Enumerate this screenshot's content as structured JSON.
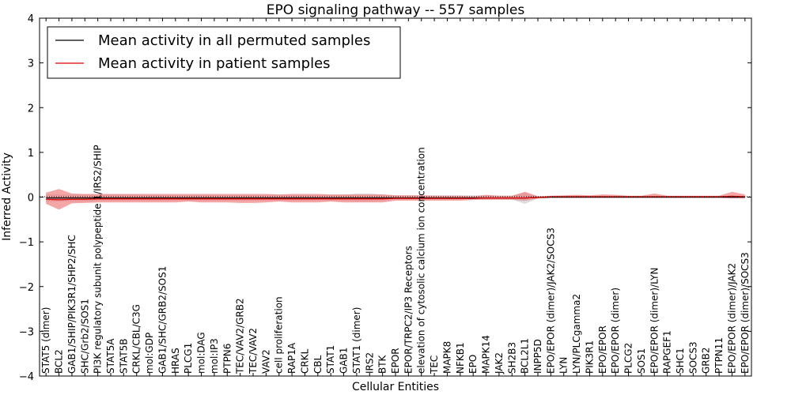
{
  "chart_data": {
    "type": "line",
    "title": "EPO signaling pathway -- 557 samples",
    "xlabel": "Cellular Entities",
    "ylabel": "Inferred Activity",
    "ylim": [
      -4,
      4
    ],
    "yticks": [
      "−4",
      "−3",
      "−2",
      "−1",
      "0",
      "1",
      "2",
      "3",
      "4"
    ],
    "grid": false,
    "legend_position": "top-left",
    "colors": {
      "permuted": "#000000",
      "patient": "#e00000",
      "patient_band": "#f08080",
      "permuted_band": "#b0b0b0"
    },
    "categories": [
      "STAT5 (dimer)",
      "BCL2",
      "GAB1/SHIP/PIK3R1/SHP2/SHC",
      "SHC/Grb2/SOS1",
      "PI3K regulatory subunit polypeptide 1/IRS2/SHIP",
      "STAT5A",
      "STAT5B",
      "CRKL/CBL/C3G",
      "mol:GDP",
      "GAB1/SHC/GRB2/SOS1",
      "HRAS",
      "PLCG1",
      "mol:DAG",
      "mol:IP3",
      "PTPN6",
      "TEC/VAV2/GRB2",
      "TEC/VAV2",
      "VAV2",
      "cell proliferation",
      "RAP1A",
      "CRKL",
      "CBL",
      "STAT1",
      "GAB1",
      "STAT1 (dimer)",
      "IRS2",
      "BTK",
      "EPOR",
      "EPOR/TRPC2/IP3 Receptors",
      "elevation of cytosolic calcium ion concentration",
      "TEC",
      "MAPK8",
      "NFKB1",
      "EPO",
      "MAPK14",
      "JAK2",
      "SH2B3",
      "BCL2L1",
      "INPP5D",
      "EPO/EPOR (dimer)/JAK2/SOCS3",
      "LYN",
      "LYN/PLCgamma2",
      "PIK3R1",
      "EPO/EPOR",
      "EPO/EPOR (dimer)",
      "PLCG2",
      "SOS1",
      "EPO/EPOR (dimer)/LYN",
      "RAPGEF1",
      "SHC1",
      "SOCS3",
      "GRB2",
      "PTPN11",
      "EPO/EPOR (dimer)/JAK2",
      "EPO/EPOR (dimer)/SOCS3"
    ],
    "series": [
      {
        "name": "Mean activity in all permuted samples",
        "values": [
          -0.02,
          -0.02,
          -0.02,
          -0.02,
          -0.02,
          -0.02,
          -0.02,
          -0.02,
          -0.02,
          -0.02,
          -0.02,
          -0.02,
          -0.02,
          -0.02,
          -0.02,
          -0.02,
          -0.02,
          -0.02,
          -0.02,
          -0.02,
          -0.02,
          -0.02,
          -0.02,
          -0.02,
          -0.02,
          -0.02,
          -0.02,
          -0.02,
          -0.02,
          -0.02,
          -0.02,
          -0.02,
          -0.02,
          -0.02,
          -0.02,
          -0.02,
          -0.02,
          -0.02,
          -0.01,
          0.0,
          0.0,
          0.0,
          0.0,
          0.0,
          0.0,
          0.0,
          0.0,
          0.0,
          0.0,
          0.0,
          0.0,
          0.0,
          0.0,
          0.0,
          0.0
        ],
        "lower": [
          -0.1,
          -0.1,
          -0.1,
          -0.1,
          -0.08,
          -0.08,
          -0.08,
          -0.08,
          -0.08,
          -0.08,
          -0.08,
          -0.08,
          -0.08,
          -0.08,
          -0.08,
          -0.08,
          -0.08,
          -0.08,
          -0.08,
          -0.08,
          -0.08,
          -0.08,
          -0.08,
          -0.08,
          -0.1,
          -0.1,
          -0.08,
          -0.06,
          -0.06,
          -0.06,
          -0.06,
          -0.06,
          -0.06,
          -0.06,
          -0.05,
          -0.05,
          -0.05,
          -0.15,
          -0.03,
          -0.02,
          -0.02,
          -0.02,
          -0.02,
          -0.02,
          -0.02,
          -0.02,
          -0.02,
          -0.02,
          -0.02,
          -0.02,
          -0.02,
          -0.02,
          -0.02,
          -0.02,
          -0.02
        ],
        "upper": [
          0.06,
          0.06,
          0.06,
          0.06,
          0.06,
          0.06,
          0.06,
          0.06,
          0.05,
          0.05,
          0.05,
          0.05,
          0.05,
          0.05,
          0.05,
          0.05,
          0.05,
          0.05,
          0.05,
          0.05,
          0.05,
          0.05,
          0.05,
          0.05,
          0.08,
          0.08,
          0.06,
          0.04,
          0.04,
          0.04,
          0.04,
          0.04,
          0.04,
          0.04,
          0.03,
          0.03,
          0.03,
          0.1,
          0.02,
          0.02,
          0.02,
          0.02,
          0.02,
          0.02,
          0.02,
          0.02,
          0.02,
          0.02,
          0.02,
          0.02,
          0.02,
          0.02,
          0.02,
          0.02,
          0.02
        ]
      },
      {
        "name": "Mean activity in patient samples",
        "values": [
          -0.05,
          -0.06,
          -0.05,
          -0.05,
          -0.04,
          -0.04,
          -0.04,
          -0.04,
          -0.04,
          -0.04,
          -0.04,
          -0.04,
          -0.04,
          -0.04,
          -0.04,
          -0.04,
          -0.04,
          -0.04,
          -0.04,
          -0.04,
          -0.04,
          -0.04,
          -0.04,
          -0.04,
          -0.04,
          -0.04,
          -0.04,
          -0.03,
          -0.03,
          -0.03,
          -0.03,
          -0.03,
          -0.03,
          -0.03,
          -0.02,
          -0.02,
          -0.02,
          -0.02,
          -0.01,
          0.01,
          0.01,
          0.01,
          0.01,
          0.01,
          0.01,
          0.01,
          0.01,
          0.01,
          0.01,
          0.01,
          0.01,
          0.01,
          0.01,
          0.02,
          0.01
        ],
        "lower": [
          -0.15,
          -0.28,
          -0.14,
          -0.13,
          -0.12,
          -0.12,
          -0.12,
          -0.12,
          -0.12,
          -0.12,
          -0.12,
          -0.1,
          -0.12,
          -0.12,
          -0.12,
          -0.13,
          -0.13,
          -0.12,
          -0.1,
          -0.12,
          -0.12,
          -0.12,
          -0.1,
          -0.12,
          -0.12,
          -0.12,
          -0.12,
          -0.08,
          -0.08,
          -0.08,
          -0.08,
          -0.08,
          -0.08,
          -0.06,
          -0.06,
          -0.06,
          -0.06,
          -0.08,
          -0.03,
          -0.02,
          -0.02,
          -0.02,
          -0.02,
          -0.02,
          -0.02,
          -0.02,
          -0.02,
          -0.02,
          -0.02,
          -0.02,
          -0.02,
          -0.02,
          -0.02,
          -0.03,
          -0.03
        ],
        "upper": [
          0.1,
          0.18,
          0.08,
          0.07,
          0.07,
          0.07,
          0.07,
          0.07,
          0.07,
          0.07,
          0.07,
          0.07,
          0.07,
          0.07,
          0.07,
          0.07,
          0.07,
          0.07,
          0.06,
          0.07,
          0.07,
          0.07,
          0.06,
          0.06,
          0.06,
          0.06,
          0.06,
          0.04,
          0.04,
          0.04,
          0.03,
          0.03,
          0.03,
          0.02,
          0.05,
          0.03,
          0.03,
          0.12,
          0.02,
          0.03,
          0.04,
          0.05,
          0.04,
          0.06,
          0.05,
          0.03,
          0.03,
          0.08,
          0.03,
          0.03,
          0.03,
          0.03,
          0.03,
          0.12,
          0.06
        ]
      }
    ]
  }
}
